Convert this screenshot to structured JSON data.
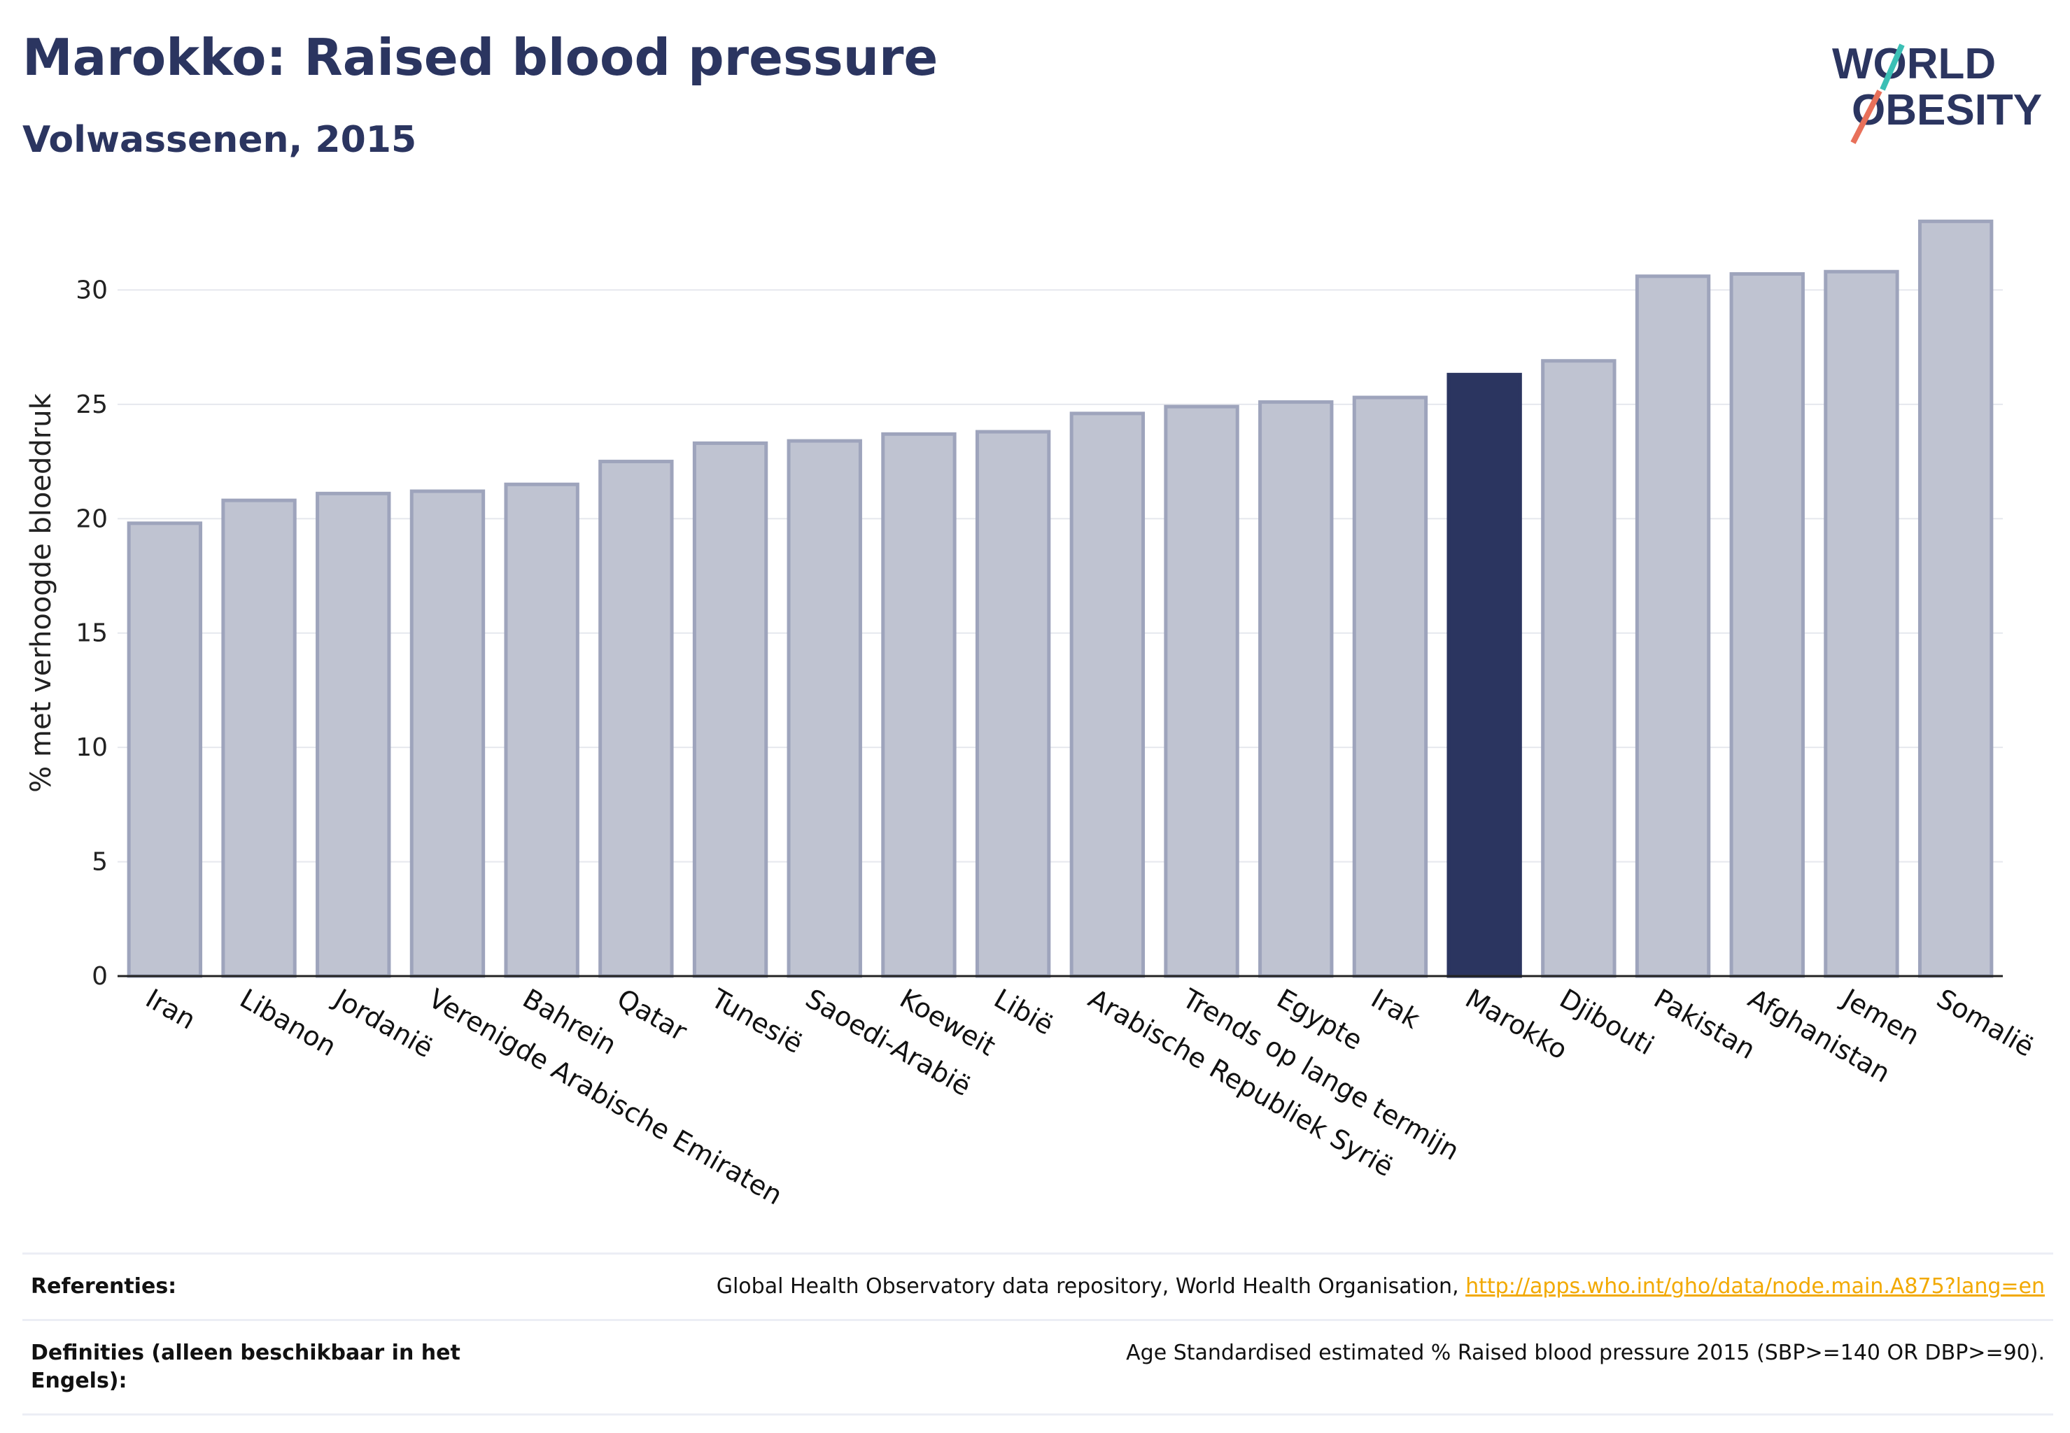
{
  "header": {
    "title": "Marokko: Raised blood pressure",
    "subtitle": "Volwassenen, 2015"
  },
  "logo": {
    "line1": "WORLD",
    "line2": "OBESITY",
    "colors": {
      "text": "#2b3560",
      "teal": "#3bbfb5",
      "coral": "#e8705a"
    }
  },
  "chart_data": {
    "type": "bar",
    "title": "Marokko: Raised blood pressure",
    "subtitle": "Volwassenen, 2015",
    "ylabel": "% met verhoogde bloeddruk",
    "xlabel": "",
    "ylim": [
      0,
      33.5
    ],
    "yticks": [
      0,
      5,
      10,
      15,
      20,
      25,
      30
    ],
    "grid": true,
    "highlight": "Marokko",
    "colors": {
      "bar": "#bfc3d1",
      "bar_edge": "#9ea4bc",
      "highlight": "#2b3560",
      "grid": "#e6e8ee",
      "axis": "#222222"
    },
    "categories": [
      "Iran",
      "Libanon",
      "Jordanië",
      "Verenigde Arabische Emiraten",
      "Bahrein",
      "Qatar",
      "Tunesië",
      "Saoedi-Arabië",
      "Koeweit",
      "Libië",
      "Arabische Republiek Syrië",
      "Trends op lange termijn",
      "Egypte",
      "Irak",
      "Marokko",
      "Djibouti",
      "Pakistan",
      "Afghanistan",
      "Jemen",
      "Somalië"
    ],
    "values": [
      19.8,
      20.8,
      21.1,
      21.2,
      21.5,
      22.5,
      23.3,
      23.4,
      23.7,
      23.8,
      24.6,
      24.9,
      25.1,
      25.3,
      26.3,
      26.9,
      30.6,
      30.7,
      30.8,
      33.0
    ]
  },
  "references": [
    {
      "label": "Referenties:",
      "text": "Global Health Observatory data repository, World Health Organisation, ",
      "link": "http://apps.who.int/gho/data/node.main.A875?lang=en"
    },
    {
      "label": "Definities (alleen beschikbaar in het Engels):",
      "text": "Age Standardised estimated % Raised blood pressure 2015 (SBP>=140 OR DBP>=90).",
      "link": ""
    }
  ]
}
